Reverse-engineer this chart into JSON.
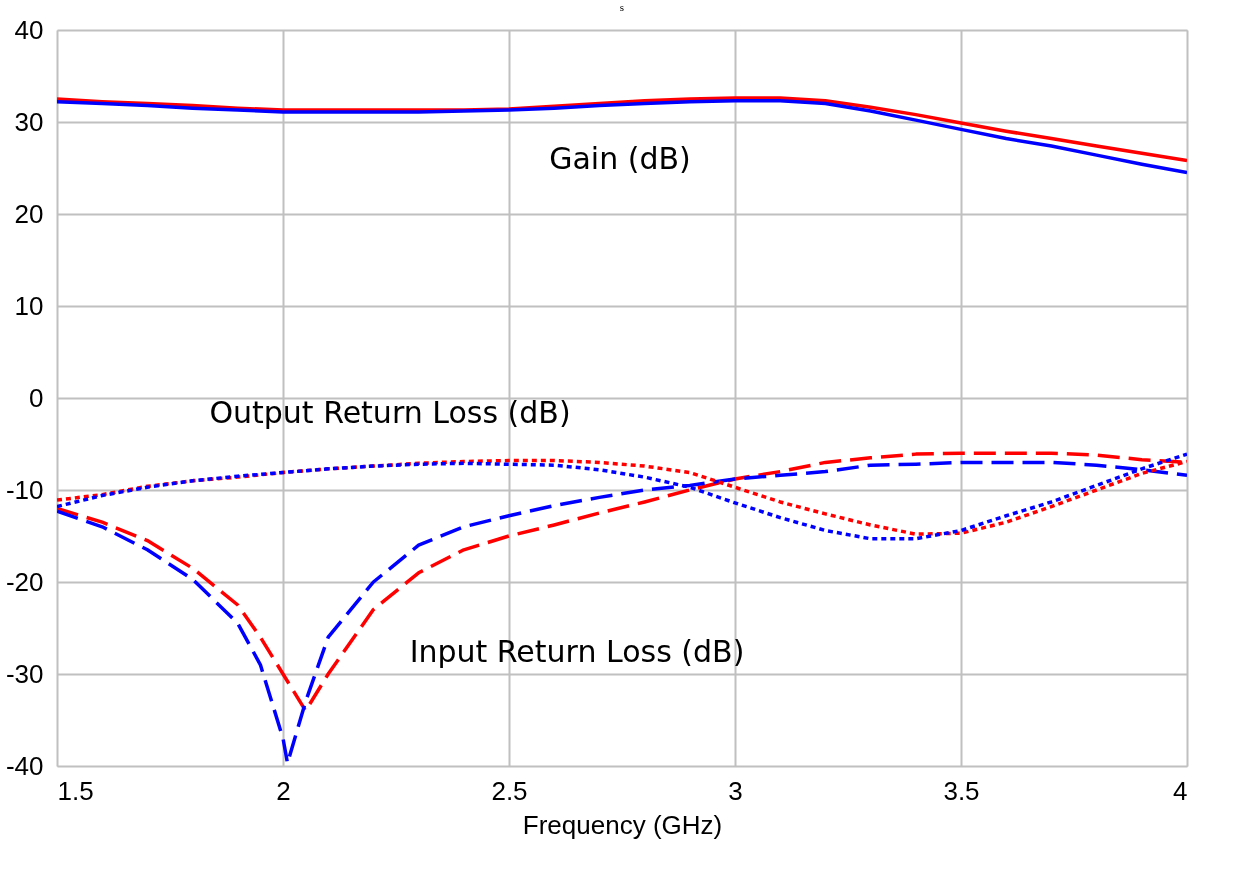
{
  "chart_data": {
    "type": "line",
    "title": "s",
    "xlabel": "Frequency (GHz)",
    "xlim": [
      1.5,
      4
    ],
    "ylim": [
      -40,
      40
    ],
    "xticks": [
      1.5,
      2,
      2.5,
      3,
      3.5,
      4
    ],
    "yticks": [
      -40,
      -30,
      -20,
      -10,
      0,
      10,
      20,
      30,
      40
    ],
    "grid": true,
    "annotations": [
      "Gain (dB)",
      "Output Return Loss (dB)",
      "Input Return Loss (dB)"
    ],
    "series": [
      {
        "color": "#ff0000",
        "line_style": "solid",
        "x": [
          1.5,
          1.6,
          1.7,
          1.8,
          1.9,
          2.0,
          2.1,
          2.2,
          2.3,
          2.4,
          2.5,
          2.6,
          2.7,
          2.8,
          2.9,
          3.0,
          3.1,
          3.2,
          3.3,
          3.4,
          3.5,
          3.6,
          3.7,
          3.8,
          3.9,
          4.0
        ],
        "values": [
          32.5,
          32.2,
          32,
          31.8,
          31.5,
          31.3,
          31.3,
          31.3,
          31.3,
          31.3,
          31.4,
          31.7,
          32,
          32.3,
          32.5,
          32.6,
          32.6,
          32.3,
          31.6,
          30.8,
          29.9,
          29.0,
          28.2,
          27.4,
          26.6,
          25.8
        ]
      },
      {
        "color": "#0000ff",
        "line_style": "solid",
        "x": [
          1.5,
          1.6,
          1.7,
          1.8,
          1.9,
          2.0,
          2.1,
          2.2,
          2.3,
          2.4,
          2.5,
          2.6,
          2.7,
          2.8,
          2.9,
          3.0,
          3.1,
          3.2,
          3.3,
          3.4,
          3.5,
          3.6,
          3.7,
          3.8,
          3.9,
          4.0
        ],
        "values": [
          32.2,
          32,
          31.8,
          31.5,
          31.3,
          31.1,
          31.1,
          31.1,
          31.1,
          31.2,
          31.3,
          31.5,
          31.8,
          32,
          32.2,
          32.3,
          32.3,
          32.0,
          31.2,
          30.2,
          29.2,
          28.2,
          27.4,
          26.4,
          25.4,
          24.5
        ]
      },
      {
        "color": "#ff0000",
        "line_style": "dashed",
        "x": [
          1.5,
          1.6,
          1.7,
          1.8,
          1.9,
          1.95,
          2.0,
          2.05,
          2.1,
          2.2,
          2.3,
          2.4,
          2.5,
          2.6,
          2.7,
          2.8,
          2.9,
          3.0,
          3.1,
          3.2,
          3.3,
          3.4,
          3.5,
          3.6,
          3.7,
          3.8,
          3.9,
          4.0
        ],
        "values": [
          -12,
          -13.5,
          -15.5,
          -18.5,
          -22.5,
          -26,
          -30,
          -34,
          -30,
          -23,
          -19,
          -16.5,
          -15,
          -13.8,
          -12.5,
          -11.3,
          -10,
          -8.8,
          -8,
          -7,
          -6.5,
          -6.1,
          -6,
          -6,
          -6,
          -6.2,
          -6.7,
          -7
        ]
      },
      {
        "color": "#0000ff",
        "line_style": "dashed",
        "x": [
          1.5,
          1.6,
          1.7,
          1.8,
          1.9,
          1.95,
          2.0,
          2.01,
          2.05,
          2.1,
          2.2,
          2.3,
          2.4,
          2.5,
          2.6,
          2.7,
          2.8,
          2.9,
          3.0,
          3.1,
          3.2,
          3.3,
          3.4,
          3.5,
          3.6,
          3.7,
          3.8,
          3.9,
          4.0
        ],
        "values": [
          -12.3,
          -14,
          -16.5,
          -19.7,
          -24.5,
          -29,
          -37,
          -39.7,
          -33,
          -26,
          -20,
          -16,
          -14,
          -12.8,
          -11.7,
          -10.8,
          -10,
          -9.5,
          -8.8,
          -8.4,
          -8,
          -7.3,
          -7.2,
          -7,
          -7,
          -7,
          -7.3,
          -7.8,
          -8.4
        ]
      },
      {
        "color": "#ff0000",
        "line_style": "dotted",
        "x": [
          1.5,
          1.6,
          1.7,
          1.8,
          1.9,
          2.0,
          2.1,
          2.2,
          2.3,
          2.4,
          2.5,
          2.6,
          2.7,
          2.8,
          2.9,
          3.0,
          3.1,
          3.2,
          3.3,
          3.4,
          3.5,
          3.6,
          3.7,
          3.8,
          3.9,
          4.0
        ],
        "values": [
          -11.1,
          -10.5,
          -9.6,
          -9,
          -8.6,
          -8.1,
          -7.7,
          -7.4,
          -7.1,
          -6.9,
          -6.8,
          -6.8,
          -7,
          -7.4,
          -8.1,
          -9.7,
          -11.3,
          -12.6,
          -13.8,
          -14.8,
          -14.7,
          -13.5,
          -11.8,
          -10,
          -8.2,
          -6.9
        ]
      },
      {
        "color": "#0000ff",
        "line_style": "dotted",
        "x": [
          1.5,
          1.6,
          1.7,
          1.8,
          1.9,
          2.0,
          2.1,
          2.2,
          2.3,
          2.4,
          2.5,
          2.6,
          2.7,
          2.8,
          2.9,
          3.0,
          3.1,
          3.2,
          3.3,
          3.4,
          3.5,
          3.6,
          3.7,
          3.8,
          3.9,
          4.0
        ],
        "values": [
          -11.8,
          -10.6,
          -9.7,
          -9.0,
          -8.5,
          -8.1,
          -7.7,
          -7.4,
          -7.2,
          -7.1,
          -7.2,
          -7.3,
          -7.8,
          -8.6,
          -9.7,
          -11.4,
          -13,
          -14.4,
          -15.3,
          -15.3,
          -14.4,
          -12.8,
          -11.3,
          -9.5,
          -7.7,
          -6.1
        ]
      }
    ]
  }
}
